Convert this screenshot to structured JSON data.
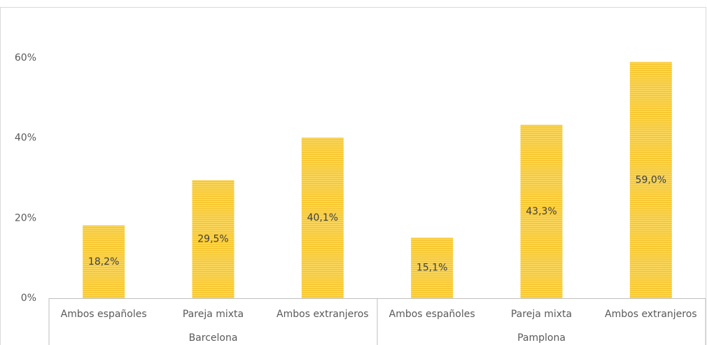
{
  "chart_data": {
    "type": "bar",
    "categories": [
      "Ambos españoles",
      "Pareja mixta",
      "Ambos extranjeros",
      "Ambos españoles",
      "Pareja mixta",
      "Ambos extranjeros"
    ],
    "groups": [
      "Barcelona",
      "Pamplona"
    ],
    "values": [
      18.2,
      29.5,
      40.1,
      15.1,
      43.3,
      59.0
    ],
    "value_labels": [
      "18,2%",
      "29,5%",
      "40,1%",
      "15,1%",
      "43,3%",
      "59,0%"
    ],
    "color": "#f7c832",
    "ylim": [
      0,
      60
    ],
    "yticks": [
      {
        "value": 0,
        "label": "0%"
      },
      {
        "value": 20,
        "label": "20%"
      },
      {
        "value": 40,
        "label": "40%"
      },
      {
        "value": 60,
        "label": "60%"
      }
    ],
    "grid": false
  }
}
